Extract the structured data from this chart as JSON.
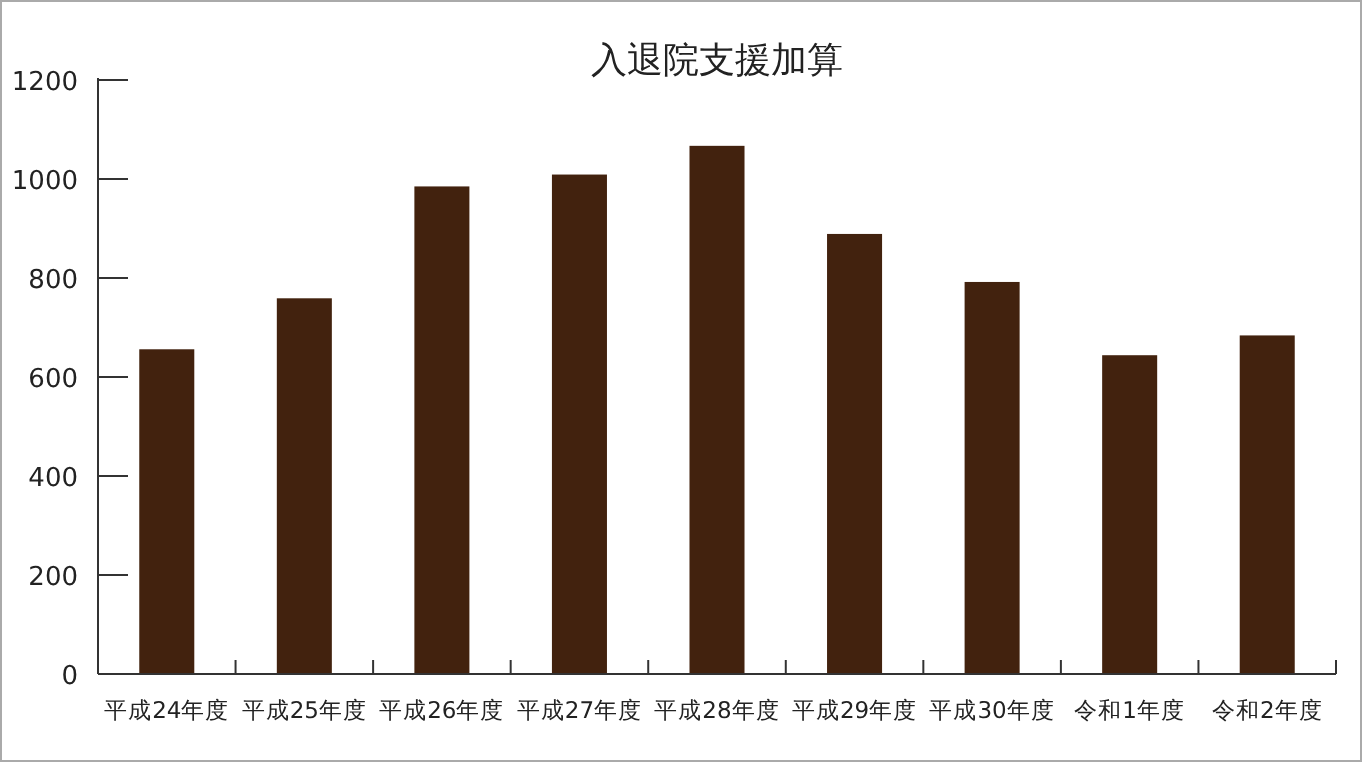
{
  "chart_data": {
    "type": "bar",
    "title": "入退院支援加算",
    "categories": [
      "平成24年度",
      "平成25年度",
      "平成26年度",
      "平成27年度",
      "平成28年度",
      "平成29年度",
      "平成30年度",
      "令和1年度",
      "令和2年度"
    ],
    "values": [
      656,
      759,
      985,
      1009,
      1067,
      889,
      792,
      644,
      684
    ],
    "color": "#42220e",
    "ylim": [
      0,
      1200
    ],
    "yticks": [
      0,
      200,
      400,
      600,
      800,
      1000,
      1200
    ]
  }
}
